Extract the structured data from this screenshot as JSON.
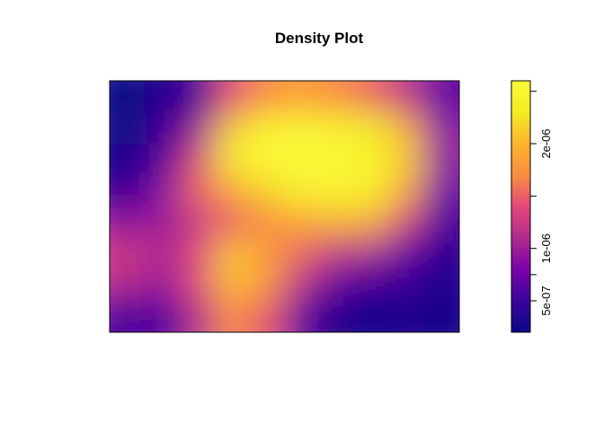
{
  "chart_data": {
    "type": "heatmap",
    "title": "Density Plot",
    "xlabel": "",
    "ylabel": "",
    "axes_shown": false,
    "grid": false,
    "legend": {
      "type": "colorbar",
      "placement": "right",
      "range": [
        2e-07,
        2.6e-06
      ],
      "ticks": [
        {
          "value": 5e-07,
          "label": "5e-07"
        },
        {
          "value": 7.5e-07,
          "label": ""
        },
        {
          "value": 1e-06,
          "label": "1e-06"
        },
        {
          "value": 1.5e-06,
          "label": ""
        },
        {
          "value": 2e-06,
          "label": "2e-06"
        },
        {
          "value": 2.5e-06,
          "label": ""
        }
      ]
    },
    "colors": [
      "#0c0786",
      "#3b049a",
      "#7a02a8",
      "#b02a8f",
      "#e5477a",
      "#fa8d3f",
      "#fdb42f",
      "#f5ec22",
      "#fafa3a"
    ],
    "density_grid": {
      "rows": 8,
      "cols": 10,
      "values": [
        [
          0.01,
          0.06,
          0.12,
          0.5,
          0.63,
          0.66,
          0.62,
          0.55,
          0.4,
          0.2
        ],
        [
          0.02,
          0.1,
          0.32,
          0.8,
          0.95,
          0.97,
          0.94,
          0.88,
          0.72,
          0.28
        ],
        [
          0.05,
          0.15,
          0.48,
          0.92,
          1.0,
          0.99,
          0.97,
          0.95,
          0.8,
          0.3
        ],
        [
          0.1,
          0.28,
          0.55,
          0.7,
          0.82,
          0.95,
          0.95,
          0.92,
          0.7,
          0.22
        ],
        [
          0.3,
          0.32,
          0.44,
          0.54,
          0.62,
          0.7,
          0.72,
          0.72,
          0.45,
          0.15
        ],
        [
          0.45,
          0.38,
          0.48,
          0.8,
          0.68,
          0.55,
          0.4,
          0.35,
          0.2,
          0.08
        ],
        [
          0.38,
          0.3,
          0.5,
          0.78,
          0.65,
          0.38,
          0.18,
          0.12,
          0.1,
          0.06
        ],
        [
          0.15,
          0.15,
          0.38,
          0.62,
          0.52,
          0.18,
          0.04,
          0.03,
          0.04,
          0.03
        ]
      ]
    }
  }
}
